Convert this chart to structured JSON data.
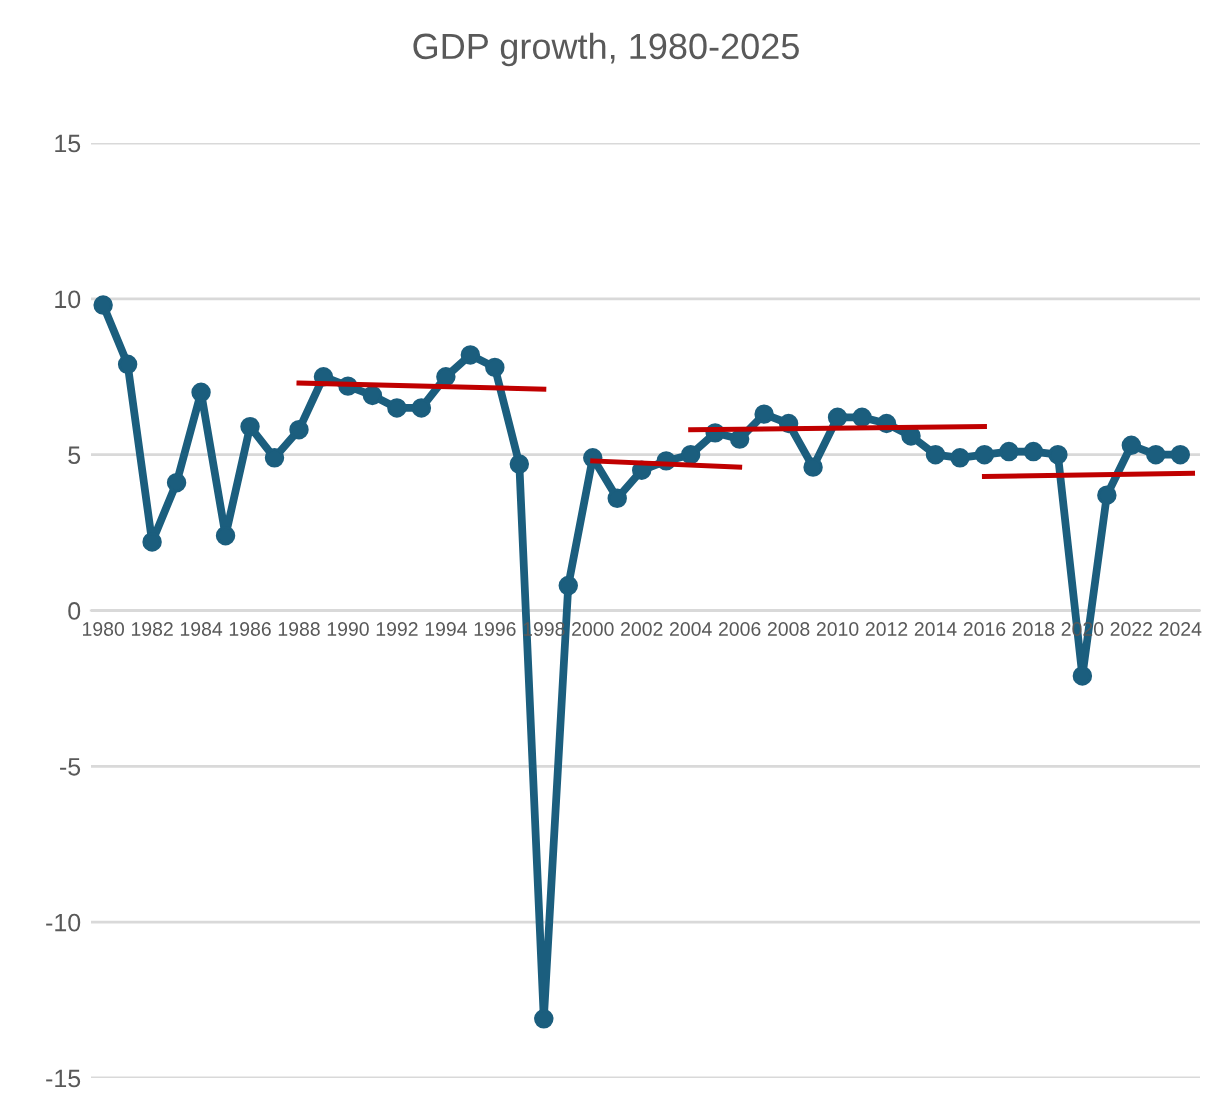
{
  "chart_data": {
    "type": "line",
    "title": "GDP growth, 1980-2025",
    "x": [
      1980,
      1981,
      1982,
      1983,
      1984,
      1985,
      1986,
      1987,
      1988,
      1989,
      1990,
      1991,
      1992,
      1993,
      1994,
      1995,
      1996,
      1997,
      1998,
      1999,
      2000,
      2001,
      2002,
      2003,
      2004,
      2005,
      2006,
      2007,
      2008,
      2009,
      2010,
      2011,
      2012,
      2013,
      2014,
      2015,
      2016,
      2017,
      2018,
      2019,
      2020,
      2021,
      2022,
      2023,
      2024
    ],
    "series": [
      {
        "color": "#1b5e7e",
        "marker": "circle",
        "values": [
          9.8,
          7.9,
          2.2,
          4.1,
          7.0,
          2.4,
          5.9,
          4.9,
          5.8,
          7.5,
          7.2,
          6.9,
          6.5,
          6.5,
          7.5,
          8.2,
          7.8,
          4.7,
          -13.1,
          0.8,
          4.9,
          3.6,
          4.5,
          4.8,
          5.0,
          5.7,
          5.5,
          6.3,
          6.0,
          4.6,
          6.2,
          6.2,
          6.0,
          5.6,
          5.0,
          4.9,
          5.0,
          5.1,
          5.1,
          5.0,
          -2.1,
          3.7,
          5.3,
          5.0,
          5.0
        ]
      },
      {
        "type": "line",
        "color": "#c00000",
        "marker": "none",
        "x": [
          1988,
          1998
        ],
        "values": [
          7.3,
          7.1
        ]
      },
      {
        "type": "line",
        "color": "#c00000",
        "marker": "none",
        "x": [
          2000,
          2006
        ],
        "values": [
          4.8,
          4.6
        ]
      },
      {
        "type": "line",
        "color": "#c00000",
        "marker": "none",
        "x": [
          2004,
          2016
        ],
        "values": [
          5.8,
          5.9
        ]
      },
      {
        "type": "line",
        "color": "#c00000",
        "marker": "none",
        "x": [
          2016,
          2024.5
        ],
        "values": [
          4.3,
          4.4
        ]
      }
    ],
    "xlim": [
      1979.5,
      2024.8
    ],
    "xticks": [
      1980,
      1982,
      1984,
      1986,
      1988,
      1990,
      1992,
      1994,
      1996,
      1998,
      2000,
      2002,
      2004,
      2006,
      2008,
      2010,
      2012,
      2014,
      2016,
      2018,
      2020,
      2022,
      2024
    ],
    "ylim": [
      -15,
      15
    ],
    "yticks": [
      -15,
      -10,
      -5,
      0,
      5,
      10,
      15
    ],
    "grid": "y",
    "line_style": "solid",
    "legend": false
  }
}
